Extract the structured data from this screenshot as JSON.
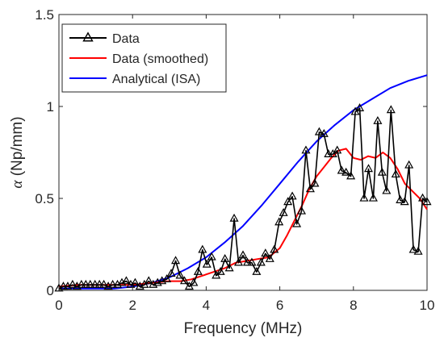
{
  "chart_data": {
    "type": "line",
    "xlabel": "Frequency (MHz)",
    "ylabel_symbol": "α",
    "ylabel_rest": " (Np/mm)",
    "xlim": [
      0,
      10
    ],
    "ylim": [
      0,
      1.5
    ],
    "xticks": [
      "0",
      "2",
      "4",
      "6",
      "8",
      "10"
    ],
    "xtick_values": [
      0,
      2,
      4,
      6,
      8,
      10
    ],
    "yticks": [
      "0",
      "0.5",
      "1",
      "1.5"
    ],
    "ytick_values": [
      0,
      0.5,
      1,
      1.5
    ],
    "grid": false,
    "legend_position": "top-left",
    "series": [
      {
        "name": "Data",
        "color": "#000000",
        "marker": "triangle",
        "x": [
          0.0,
          0.12,
          0.24,
          0.37,
          0.49,
          0.61,
          0.73,
          0.85,
          0.98,
          1.1,
          1.22,
          1.34,
          1.46,
          1.59,
          1.71,
          1.83,
          1.95,
          2.07,
          2.2,
          2.32,
          2.44,
          2.56,
          2.68,
          2.8,
          2.93,
          3.05,
          3.17,
          3.29,
          3.41,
          3.54,
          3.66,
          3.78,
          3.9,
          4.02,
          4.15,
          4.27,
          4.39,
          4.51,
          4.63,
          4.76,
          4.88,
          5.0,
          5.12,
          5.24,
          5.37,
          5.49,
          5.61,
          5.73,
          5.85,
          5.98,
          6.1,
          6.22,
          6.34,
          6.46,
          6.59,
          6.71,
          6.83,
          6.95,
          7.07,
          7.2,
          7.32,
          7.44,
          7.56,
          7.68,
          7.8,
          7.93,
          8.05,
          8.17,
          8.29,
          8.41,
          8.54,
          8.66,
          8.78,
          8.9,
          9.02,
          9.15,
          9.27,
          9.39,
          9.51,
          9.63,
          9.76,
          9.88,
          10.0
        ],
        "y": [
          0.01,
          0.02,
          0.02,
          0.03,
          0.02,
          0.03,
          0.03,
          0.03,
          0.03,
          0.03,
          0.03,
          0.02,
          0.03,
          0.03,
          0.04,
          0.05,
          0.03,
          0.04,
          0.02,
          0.03,
          0.05,
          0.03,
          0.04,
          0.05,
          0.06,
          0.09,
          0.16,
          0.08,
          0.05,
          0.02,
          0.04,
          0.1,
          0.22,
          0.14,
          0.18,
          0.08,
          0.1,
          0.17,
          0.12,
          0.39,
          0.15,
          0.19,
          0.15,
          0.15,
          0.1,
          0.15,
          0.2,
          0.17,
          0.22,
          0.37,
          0.42,
          0.48,
          0.51,
          0.36,
          0.43,
          0.76,
          0.55,
          0.58,
          0.86,
          0.85,
          0.74,
          0.74,
          0.76,
          0.65,
          0.64,
          0.62,
          0.97,
          0.99,
          0.5,
          0.66,
          0.5,
          0.92,
          0.64,
          0.54,
          0.98,
          0.63,
          0.49,
          0.48,
          0.68,
          0.22,
          0.21,
          0.5,
          0.48
        ]
      },
      {
        "name": "Data (smoothed)",
        "color": "#ff0000",
        "x": [
          0,
          0.5,
          1,
          1.5,
          2,
          2.5,
          3,
          3.3,
          3.6,
          3.9,
          4.2,
          4.5,
          4.8,
          5.1,
          5.4,
          5.7,
          6.0,
          6.2,
          6.4,
          6.6,
          6.8,
          7.0,
          7.2,
          7.4,
          7.6,
          7.8,
          8.0,
          8.2,
          8.4,
          8.6,
          8.8,
          9.0,
          9.2,
          9.4,
          9.6,
          9.8,
          10.0
        ],
        "y": [
          0.02,
          0.03,
          0.03,
          0.03,
          0.03,
          0.04,
          0.05,
          0.05,
          0.06,
          0.08,
          0.1,
          0.12,
          0.15,
          0.16,
          0.17,
          0.18,
          0.23,
          0.3,
          0.38,
          0.46,
          0.55,
          0.62,
          0.67,
          0.72,
          0.76,
          0.77,
          0.72,
          0.71,
          0.73,
          0.72,
          0.75,
          0.72,
          0.66,
          0.58,
          0.54,
          0.5,
          0.44
        ]
      },
      {
        "name": "Analytical (ISA)",
        "color": "#0000ff",
        "x": [
          0,
          0.5,
          1,
          1.5,
          2,
          2.5,
          3,
          3.5,
          4,
          4.5,
          5,
          5.5,
          6,
          6.5,
          7,
          7.5,
          8,
          8.5,
          9,
          9.5,
          10
        ],
        "y": [
          0.01,
          0.01,
          0.01,
          0.01,
          0.02,
          0.04,
          0.07,
          0.12,
          0.18,
          0.26,
          0.35,
          0.46,
          0.58,
          0.7,
          0.81,
          0.9,
          0.98,
          1.04,
          1.1,
          1.14,
          1.17
        ]
      }
    ]
  }
}
